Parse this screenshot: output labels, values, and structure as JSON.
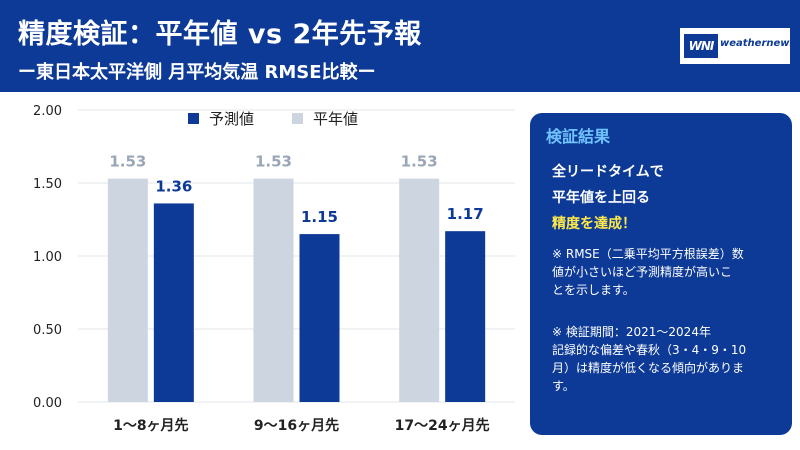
{
  "header": {
    "title": "精度検証：平年値 vs 2年先予報",
    "subtitle": "ー東日本太平洋側 月平均気温 RMSE比較ー",
    "logo_mark": "WNI",
    "logo_text": "weathernews"
  },
  "legend": {
    "forecast_label": "予測値",
    "normal_label": "平年値"
  },
  "colors": {
    "forecast": "#0d3a96",
    "normal": "#cdd5e1",
    "forecast_label": "#0d3a96",
    "normal_label": "#9aa6b6",
    "panel_bg": "#0d3a96",
    "highlight": "#ffe94a",
    "heading": "#6fc3ff"
  },
  "chart_data": {
    "type": "bar",
    "categories": [
      "1〜8ヶ月先",
      "9〜16ヶ月先",
      "17〜24ヶ月先"
    ],
    "series": [
      {
        "name": "平年値",
        "values": [
          1.53,
          1.53,
          1.53
        ]
      },
      {
        "name": "予測値",
        "values": [
          1.36,
          1.15,
          1.17
        ]
      }
    ],
    "ylim": [
      0,
      2.0
    ],
    "yticks": [
      "0.00",
      "0.50",
      "1.00",
      "1.50",
      "2.00"
    ],
    "title": "",
    "xlabel": "",
    "ylabel": "",
    "grid": true,
    "legend_position": "top"
  },
  "panel": {
    "heading": "検証結果",
    "line1": "全リードタイムで",
    "line2": "平年値を上回る",
    "line3": "精度を達成！",
    "note1": "※ RMSE（二乗平均平方根誤差）数\n値が小さいほど予測精度が高いこ\nとを示します。",
    "note2": "※ 検証期間：2021〜2024年\n記録的な偏差や春秋（3・4・9・10\n月）は精度が低くなる傾向がありま\nす。"
  }
}
